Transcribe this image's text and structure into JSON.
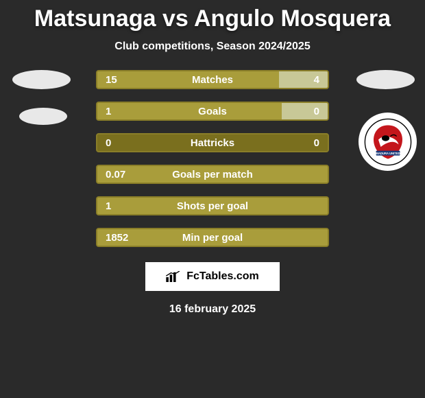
{
  "title": "Matsunaga vs Angulo Mosquera",
  "subtitle": "Club competitions, Season 2024/2025",
  "date": "16 february 2025",
  "brand": "FcTables.com",
  "colors": {
    "bar_primary": "#a99d3b",
    "bar_dark": "#7a6f1e",
    "bar_light": "#c8c897",
    "bar_border": "#8a7e28",
    "background": "#2a2a2a"
  },
  "stats": [
    {
      "label": "Matches",
      "left_val": "15",
      "right_val": "4",
      "left_pct": 79,
      "right_pct": 21,
      "left_color": "#a99d3b",
      "right_color": "#c8c897"
    },
    {
      "label": "Goals",
      "left_val": "1",
      "right_val": "0",
      "left_pct": 80,
      "right_pct": 20,
      "left_color": "#a99d3b",
      "right_color": "#c8c897"
    },
    {
      "label": "Hattricks",
      "left_val": "0",
      "right_val": "0",
      "left_pct": 100,
      "right_pct": 0,
      "left_color": "#7a6f1e",
      "right_color": "#7a6f1e"
    },
    {
      "label": "Goals per match",
      "left_val": "0.07",
      "right_val": "",
      "left_pct": 100,
      "right_pct": 0,
      "left_color": "#a99d3b",
      "right_color": "#a99d3b"
    },
    {
      "label": "Shots per goal",
      "left_val": "1",
      "right_val": "",
      "left_pct": 100,
      "right_pct": 0,
      "left_color": "#a99d3b",
      "right_color": "#a99d3b"
    },
    {
      "label": "Min per goal",
      "left_val": "1852",
      "right_val": "",
      "left_pct": 100,
      "right_pct": 0,
      "left_color": "#a99d3b",
      "right_color": "#a99d3b"
    }
  ],
  "badge_right": {
    "name": "Madura United",
    "bg": "#ffffff",
    "primary": "#c4161c",
    "banner_text_color": "#ffffff"
  }
}
